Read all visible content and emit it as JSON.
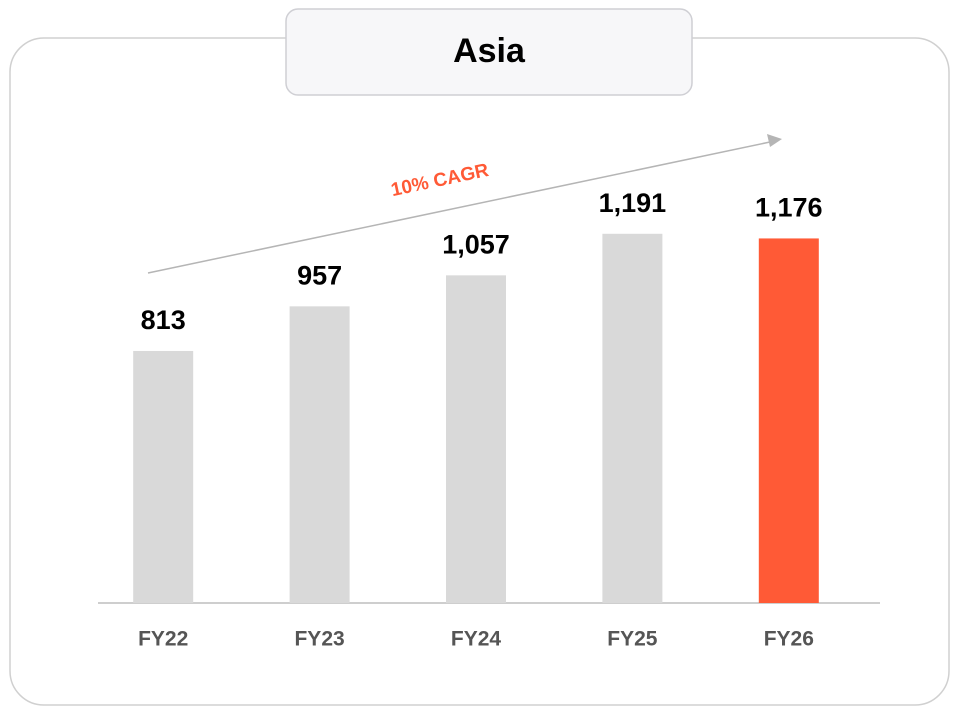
{
  "chart_data": {
    "type": "bar",
    "title": "Asia",
    "categories": [
      "FY22",
      "FY23",
      "FY24",
      "FY25",
      "FY26"
    ],
    "values": [
      813,
      957,
      1057,
      1191,
      1176
    ],
    "value_labels": [
      "813",
      "957",
      "1,057",
      "1,191",
      "1,176"
    ],
    "colors": [
      "#d9d9d9",
      "#d9d9d9",
      "#d9d9d9",
      "#d9d9d9",
      "#ff5a36"
    ],
    "ylim": [
      0,
      1300
    ],
    "annotation": "10% CAGR"
  }
}
